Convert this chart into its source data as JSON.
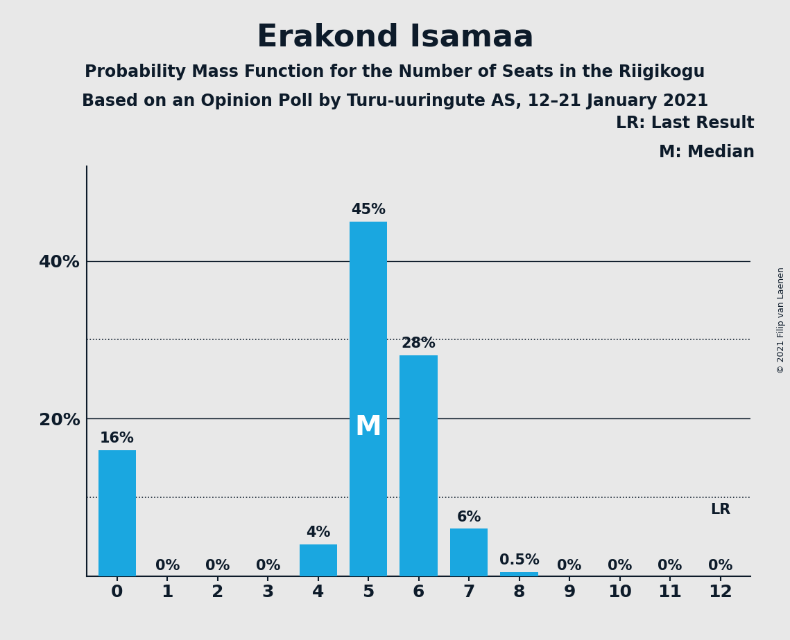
{
  "title": "Erakond Isamaa",
  "subtitle1": "Probability Mass Function for the Number of Seats in the Riigikogu",
  "subtitle2": "Based on an Opinion Poll by Turu-uuringute AS, 12–21 January 2021",
  "copyright": "© 2021 Filip van Laenen",
  "seats": [
    0,
    1,
    2,
    3,
    4,
    5,
    6,
    7,
    8,
    9,
    10,
    11,
    12
  ],
  "values": [
    0.16,
    0.0,
    0.0,
    0.0,
    0.04,
    0.45,
    0.28,
    0.06,
    0.005,
    0.0,
    0.0,
    0.0,
    0.0
  ],
  "labels": [
    "16%",
    "0%",
    "0%",
    "0%",
    "4%",
    "45%",
    "28%",
    "6%",
    "0.5%",
    "0%",
    "0%",
    "0%",
    "0%"
  ],
  "bar_color": "#1aa7e0",
  "median_seat": 5,
  "median_label": "M",
  "lr_seat": 12,
  "lr_label": "LR",
  "dotted_lines": [
    0.1,
    0.3
  ],
  "solid_lines": [
    0.2,
    0.4
  ],
  "yticks": [
    0.2,
    0.4
  ],
  "ytick_labels": [
    "20%",
    "40%"
  ],
  "background_color": "#e8e8e8",
  "title_color": "#0d1b2a",
  "legend_text1": "LR: Last Result",
  "legend_text2": "M: Median",
  "ylim": [
    0,
    0.52
  ],
  "title_fontsize": 32,
  "subtitle_fontsize": 17,
  "label_fontsize": 15,
  "tick_fontsize": 18,
  "legend_fontsize": 17,
  "copyright_fontsize": 9,
  "median_fontsize": 28
}
